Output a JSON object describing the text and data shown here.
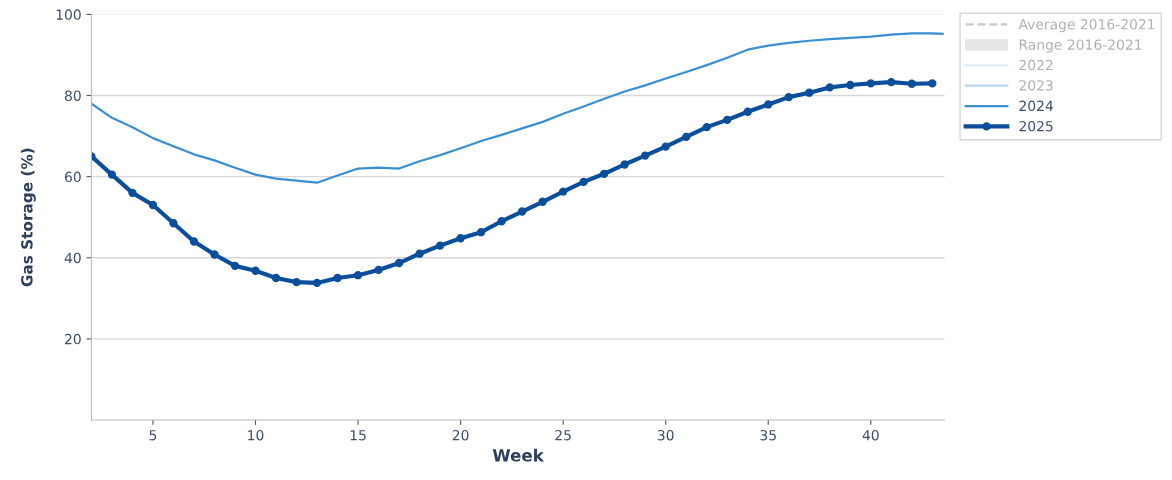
{
  "chart_data": {
    "type": "line",
    "xlabel": "Week",
    "ylabel": "Gas Storage (%)",
    "xlim": [
      2,
      43.6
    ],
    "xticks": [
      5,
      10,
      15,
      20,
      25,
      30,
      35,
      40
    ],
    "ylim": [
      0,
      100
    ],
    "yticks": [
      20,
      40,
      60,
      80,
      100
    ],
    "grid": "y",
    "legend": "top right",
    "series": [
      {
        "name": "Average 2016-2021",
        "color": "#c8c8c8",
        "line_style": "dashed"
      },
      {
        "name": "Range 2016-2021",
        "type": "area",
        "color": "#e6e6e6"
      },
      {
        "name": "2022",
        "color": "#d9e8f6"
      },
      {
        "name": "2023",
        "color": "#b9d6f0"
      },
      {
        "name": "2024",
        "color": "#3a8fd0",
        "marker": "none",
        "x": [
          2,
          3,
          4,
          5,
          6,
          7,
          8,
          9,
          10,
          11,
          12,
          13,
          14,
          15,
          16,
          17,
          18,
          19,
          20,
          21,
          22,
          23,
          24,
          25,
          26,
          27,
          28,
          29,
          30,
          31,
          32,
          33,
          34,
          35,
          36,
          37,
          38,
          39,
          40,
          41,
          42,
          43,
          43.5
        ],
        "values": [
          78,
          74.5,
          72.2,
          69.5,
          67.5,
          65.5,
          64,
          62.2,
          60.5,
          59.5,
          59,
          58.5,
          60.3,
          62,
          62.2,
          62,
          63.8,
          65.3,
          67,
          68.8,
          70.3,
          71.9,
          73.5,
          75.5,
          77.3,
          79.2,
          81,
          82.5,
          84.2,
          85.8,
          87.5,
          89.3,
          91.3,
          92.3,
          93,
          93.5,
          93.9,
          94.2,
          94.5,
          95,
          95.3,
          95.3,
          95.2
        ]
      },
      {
        "name": "2025",
        "color": "#0b4f9c",
        "marker": "circle",
        "x": [
          2,
          3,
          4,
          5,
          6,
          7,
          8,
          9,
          10,
          11,
          12,
          13,
          14,
          15,
          16,
          17,
          18,
          19,
          20,
          21,
          22,
          23,
          24,
          25,
          26,
          27,
          28,
          29,
          30,
          31,
          32,
          33,
          34,
          35,
          36,
          37,
          38,
          39,
          40,
          41,
          42,
          43
        ],
        "values": [
          65,
          60.5,
          56,
          53,
          48.5,
          44,
          40.8,
          38,
          36.8,
          35,
          34,
          33.8,
          35,
          35.7,
          37,
          38.7,
          41,
          43,
          44.8,
          46.3,
          49,
          51.4,
          53.8,
          56.3,
          58.7,
          60.7,
          63,
          65.2,
          67.4,
          69.8,
          72.2,
          74,
          76,
          77.8,
          79.6,
          80.7,
          82,
          82.6,
          83,
          83.3,
          82.9,
          83
        ]
      }
    ]
  }
}
